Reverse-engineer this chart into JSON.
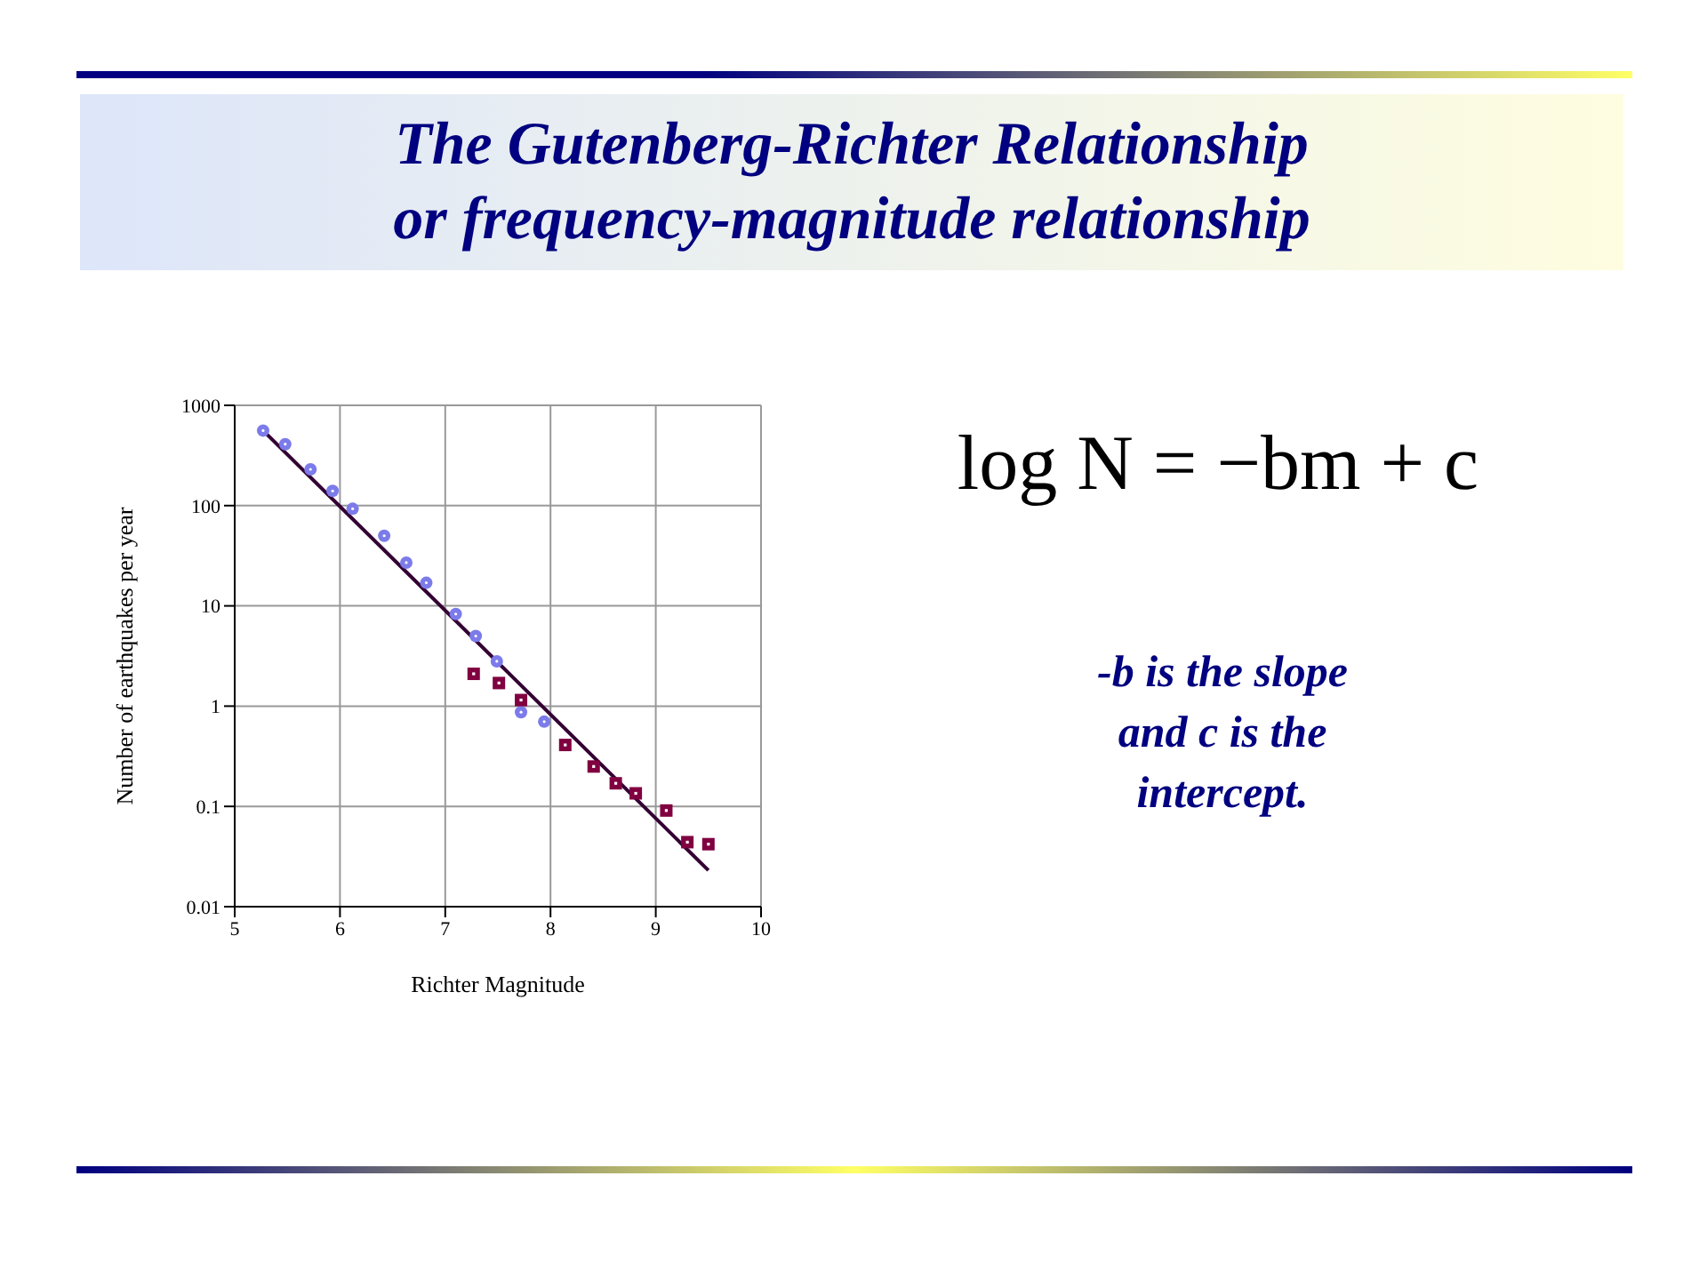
{
  "chart_data": {
    "type": "scatter",
    "title": "The Gutenberg-Richter Relationship",
    "subtitle": "or frequency-magnitude relationship",
    "xlabel": "Richter Magnitude",
    "ylabel": "Number of earthquakes per year",
    "log": "y",
    "grid": true,
    "xlim": [
      5,
      10
    ],
    "xticks": [
      5,
      6,
      7,
      8,
      9,
      10
    ],
    "ylim": [
      0.01,
      1000
    ],
    "yticks": [
      0.01,
      0.1,
      1,
      10,
      100,
      1000
    ],
    "series": [
      {
        "marker": "circle",
        "color": "#7b7bea",
        "x": [
          5.27,
          5.48,
          5.72,
          5.93,
          6.12,
          6.42,
          6.63,
          6.82,
          7.1,
          7.29,
          7.49,
          7.72,
          7.94
        ],
        "values": [
          560,
          410,
          230,
          140,
          93,
          50,
          27,
          17,
          8.3,
          5,
          2.8,
          0.87,
          0.7
        ]
      },
      {
        "marker": "square",
        "color": "#800040",
        "x": [
          7.27,
          7.51,
          7.72,
          8.14,
          8.41,
          8.62,
          8.81,
          9.1,
          9.3,
          9.5
        ],
        "values": [
          2.1,
          1.7,
          1.15,
          0.41,
          0.25,
          0.17,
          0.135,
          0.091,
          0.044,
          0.042
        ]
      },
      {
        "type": "line",
        "marker": "none",
        "color": "#330033",
        "x": [
          5.27,
          9.5
        ],
        "values": [
          560,
          0.023
        ]
      }
    ],
    "annotations": [
      "log N = −bm + c",
      "-b is the slope and c is the intercept."
    ]
  }
}
